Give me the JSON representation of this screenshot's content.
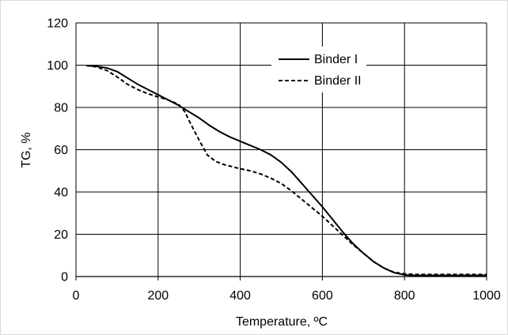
{
  "chart_data": {
    "type": "line",
    "title": "",
    "xlabel": "Temperature, ºC",
    "ylabel": "TG, %",
    "xlim": [
      0,
      1000
    ],
    "ylim": [
      0,
      120
    ],
    "xticks": [
      0,
      200,
      400,
      600,
      800,
      1000
    ],
    "yticks": [
      0,
      20,
      40,
      60,
      80,
      100,
      120
    ],
    "xtick_labels": [
      "0",
      "200",
      "400",
      "600",
      "800",
      "1000"
    ],
    "ytick_labels": [
      "0",
      "20",
      "40",
      "60",
      "80",
      "100",
      "120"
    ],
    "grid": true,
    "legend_position": "top-right (inside plot)",
    "series": [
      {
        "name": "Binder I",
        "line_style": "solid",
        "color": "#000000",
        "x": [
          25,
          50,
          75,
          100,
          125,
          150,
          175,
          200,
          225,
          250,
          275,
          300,
          325,
          350,
          375,
          400,
          425,
          450,
          475,
          500,
          525,
          550,
          575,
          600,
          625,
          650,
          675,
          700,
          725,
          750,
          775,
          800,
          810,
          825,
          850,
          900,
          950,
          1000
        ],
        "y": [
          99.8,
          99.5,
          98.7,
          97.0,
          94.0,
          91.0,
          88.5,
          86.0,
          83.5,
          81.0,
          78.0,
          75.0,
          71.5,
          68.5,
          66.0,
          64.0,
          62.0,
          60.0,
          57.5,
          54.0,
          49.5,
          44.0,
          38.5,
          33.0,
          27.0,
          21.0,
          15.5,
          11.0,
          7.0,
          4.0,
          1.8,
          0.8,
          0.6,
          0.5,
          0.5,
          0.5,
          0.5,
          0.5
        ]
      },
      {
        "name": "Binder II",
        "line_style": "dashed",
        "color": "#000000",
        "x": [
          25,
          50,
          75,
          100,
          125,
          150,
          175,
          200,
          225,
          250,
          265,
          280,
          300,
          320,
          340,
          360,
          380,
          400,
          425,
          450,
          475,
          500,
          525,
          550,
          575,
          600,
          625,
          650,
          675,
          700,
          725,
          750,
          775,
          800,
          825,
          850,
          900,
          950,
          1000
        ],
        "y": [
          99.8,
          99.2,
          97.5,
          94.5,
          91.0,
          88.5,
          86.5,
          85.0,
          83.5,
          81.5,
          78.0,
          72.0,
          64.5,
          57.5,
          54.5,
          53.0,
          52.0,
          51.0,
          50.0,
          48.5,
          46.5,
          44.0,
          40.5,
          36.5,
          32.5,
          28.5,
          24.0,
          19.5,
          15.0,
          11.0,
          7.0,
          4.0,
          2.0,
          1.3,
          1.0,
          1.0,
          1.0,
          1.0,
          1.0
        ]
      }
    ]
  }
}
